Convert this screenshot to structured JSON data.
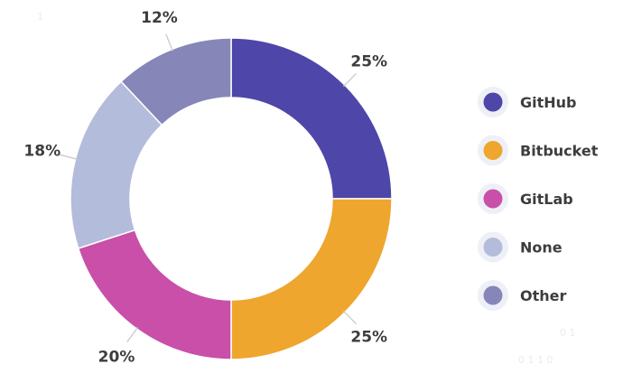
{
  "chart_data": {
    "type": "pie",
    "donut": true,
    "title": "",
    "legend_position": "right",
    "slices": [
      {
        "name": "GitHub",
        "value": 25,
        "label": "25%",
        "color": "#4e46a8"
      },
      {
        "name": "Bitbucket",
        "value": 25,
        "label": "25%",
        "color": "#eea62e"
      },
      {
        "name": "GitLab",
        "value": 20,
        "label": "20%",
        "color": "#c94fa8"
      },
      {
        "name": "None",
        "value": 18,
        "label": "18%",
        "color": "#b4bcdc"
      },
      {
        "name": "Other",
        "value": 12,
        "label": "12%",
        "color": "#8687b8"
      }
    ]
  },
  "decor": {
    "corner_text": "1",
    "bottom_right_line1": "0 1",
    "bottom_right_line2": "0 1 1 0"
  }
}
